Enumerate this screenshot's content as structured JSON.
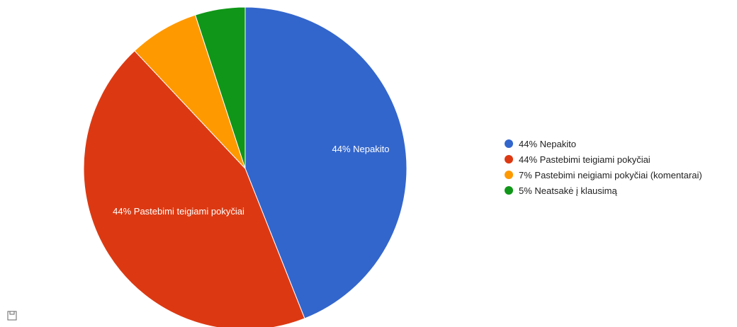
{
  "chart_data": {
    "type": "pie",
    "slices": [
      {
        "label": "Nepakito",
        "value": 44,
        "color": "#3366CC",
        "slice_text": "44% Nepakito",
        "legend_text": "44% Nepakito"
      },
      {
        "label": "Pastebimi teigiami pokyčiai",
        "value": 44,
        "color": "#DC3912",
        "slice_text": "44% Pastebimi teigiami pokyčiai",
        "legend_text": "44% Pastebimi teigiami pokyčiai"
      },
      {
        "label": "Pastebimi neigiami pokyčiai (komentarai)",
        "value": 7,
        "color": "#FF9900",
        "slice_text": "",
        "legend_text": "7% Pastebimi neigiami pokyčiai (komentarai)"
      },
      {
        "label": "Neatsakė į klausimą",
        "value": 5,
        "color": "#109618",
        "slice_text": "",
        "legend_text": "5% Neatsakė į klausimą"
      }
    ],
    "legend_position": "right"
  },
  "controls": {
    "save_icon": "floppy-disk-icon"
  }
}
